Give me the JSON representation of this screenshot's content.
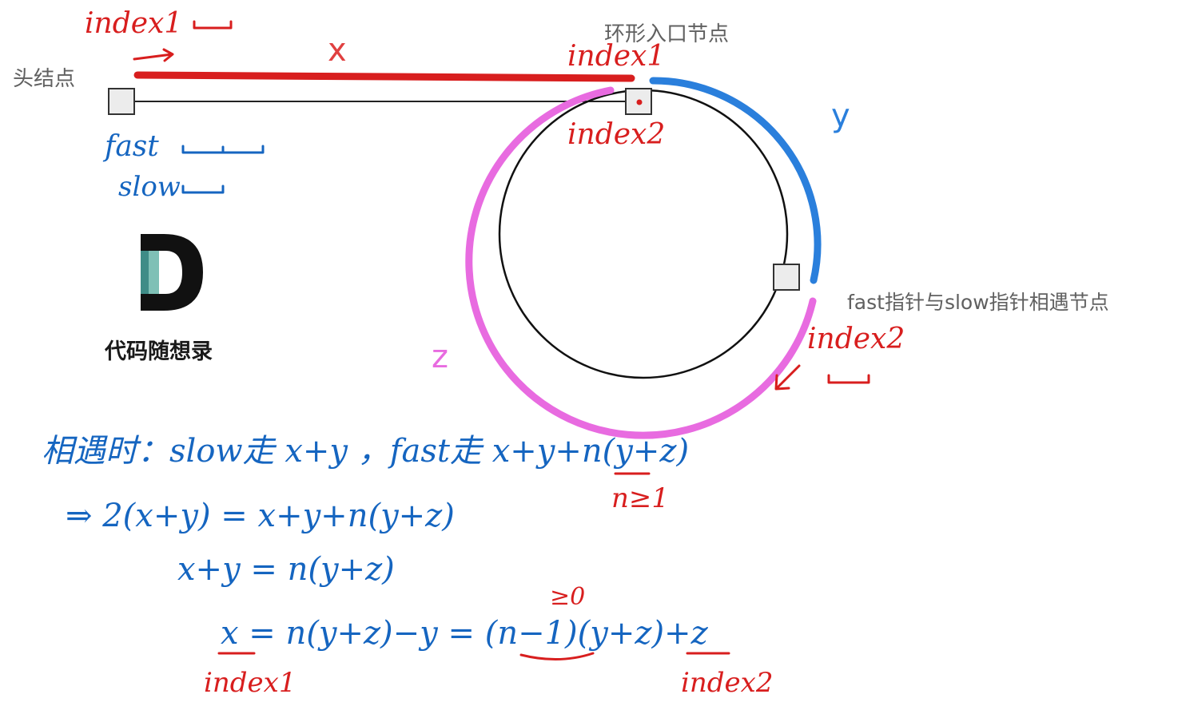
{
  "labels": {
    "head_node": "头结点",
    "entry_node": "环形入口节点",
    "meet_node": "fast指针与slow指针相遇节点",
    "x": "x",
    "y": "y",
    "z": "z"
  },
  "logo": {
    "name": "代码随想录"
  },
  "annotations": {
    "index1_top": "index1",
    "index1_entry": "index1",
    "index2_entry": "index2",
    "index2_meet": "index2",
    "fast": "fast",
    "slow": "slow"
  },
  "equations": {
    "line1": "相遇时：slow走 x+y ，fast走 x+y+n(y+z)",
    "n_constraint": "n≥1",
    "line2": "⇒ 2(x+y) = x+y+n(y+z)",
    "line3": "x+y = n(y+z)",
    "line4": "x = n(y+z)−y = (n−1)(y+z)+z",
    "ge_zero": "≥0",
    "under_x": "index1",
    "under_z": "index2"
  },
  "colors": {
    "x_path": "#d81e1e",
    "y_path": "#2a7fdc",
    "z_path": "#e86be0",
    "handwriting_red": "#d81e1e",
    "handwriting_blue": "#1565c0"
  }
}
